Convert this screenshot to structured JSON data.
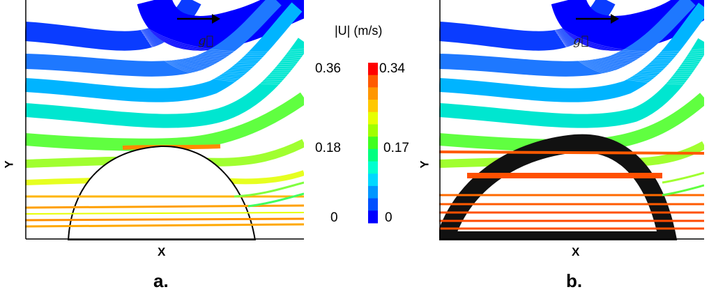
{
  "panels": [
    {
      "id": "a",
      "caption": "a.",
      "xlabel": "X",
      "ylabel": "Y",
      "gravity_label": "g⃗"
    },
    {
      "id": "b",
      "caption": "b.",
      "xlabel": "X",
      "ylabel": "Y",
      "gravity_label": "g⃗"
    }
  ],
  "colorbar": {
    "title": "|U| (m/s)",
    "left_ticks": [
      "0.36",
      "0.18",
      "0"
    ],
    "right_ticks": [
      "0.34",
      "0.17",
      "0"
    ],
    "colors": [
      "#ff0000",
      "#ff5a00",
      "#ff9600",
      "#ffc800",
      "#e6ff00",
      "#a0ff00",
      "#40ff20",
      "#00ff80",
      "#00ffd0",
      "#00d8ff",
      "#0096ff",
      "#0050ff",
      "#0000ff"
    ]
  }
}
